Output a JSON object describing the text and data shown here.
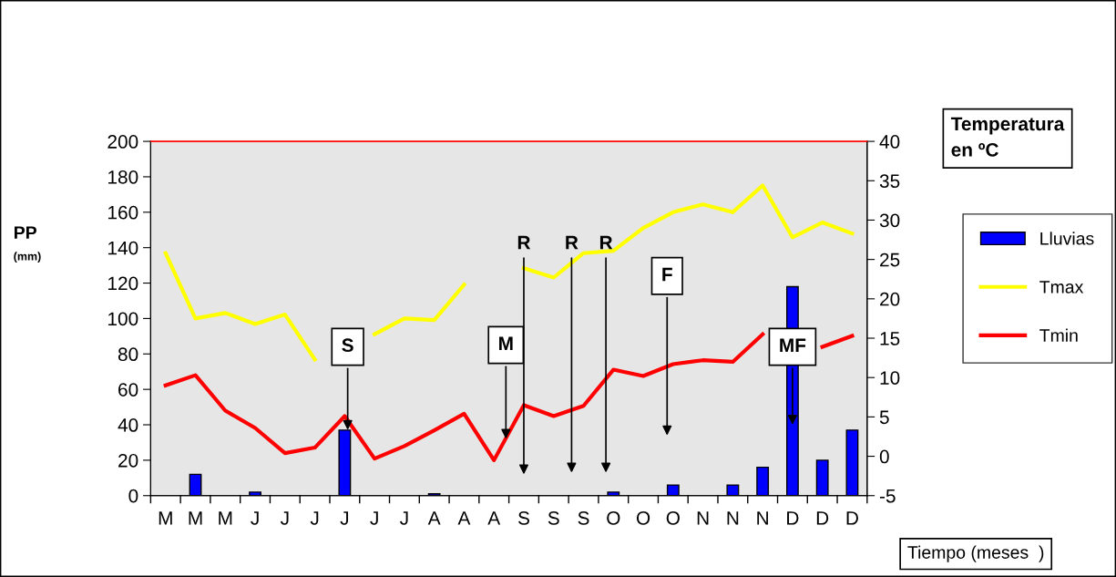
{
  "chart_data": {
    "type": "bar",
    "xlabel": "Tiempo (meses  )",
    "ylabel": "PP\n(mm)",
    "y2label": "Temperatura\nen ºC",
    "categories": [
      "M",
      "M",
      "M",
      "J",
      "J",
      "J",
      "J",
      "J",
      "J",
      "A",
      "A",
      "A",
      "S",
      "S",
      "S",
      "O",
      "O",
      "O",
      "N",
      "N",
      "N",
      "D",
      "D",
      "D"
    ],
    "series": [
      {
        "name": "Lluvias",
        "color": "#0000ff",
        "values": [
          null,
          12,
          null,
          2,
          null,
          null,
          37,
          null,
          null,
          1,
          null,
          null,
          null,
          null,
          null,
          2,
          null,
          6,
          null,
          6,
          16,
          118,
          20,
          37
        ]
      },
      {
        "name": "Tmax",
        "type": "line",
        "axis": "y2",
        "color": "#ffff00",
        "values": [
          25.8,
          17.5,
          18.2,
          16.8,
          18,
          12.3,
          null,
          15.5,
          17.5,
          17.3,
          21.8,
          null,
          23.9,
          22.7,
          25.8,
          26.1,
          29,
          31,
          32,
          31,
          34.4,
          27.8,
          29.7,
          28.3
        ]
      },
      {
        "name": "Tmin",
        "type": "line",
        "axis": "y2",
        "color": "#ff0000",
        "values": [
          9,
          10.3,
          5.8,
          3.6,
          0.4,
          1.1,
          5.1,
          -0.3,
          1.3,
          3.3,
          5.4,
          -0.5,
          6.5,
          5.1,
          6.4,
          11,
          10.2,
          11.7,
          12.2,
          12,
          15.5,
          null,
          13.9,
          15.3
        ]
      }
    ],
    "ylim": [
      0,
      200
    ],
    "yticks": [
      0,
      20,
      40,
      60,
      80,
      100,
      120,
      140,
      160,
      180,
      200
    ],
    "y2lim": [
      -5,
      40
    ],
    "y2ticks": [
      -5,
      0,
      5,
      10,
      15,
      20,
      25,
      30,
      35,
      40
    ],
    "annotations": [
      {
        "text": "S",
        "y": 37
      },
      {
        "text": "M",
        "y": 32
      },
      "R",
      "R",
      "R",
      "F",
      "MF"
    ],
    "legend": "right",
    "grid": false
  }
}
